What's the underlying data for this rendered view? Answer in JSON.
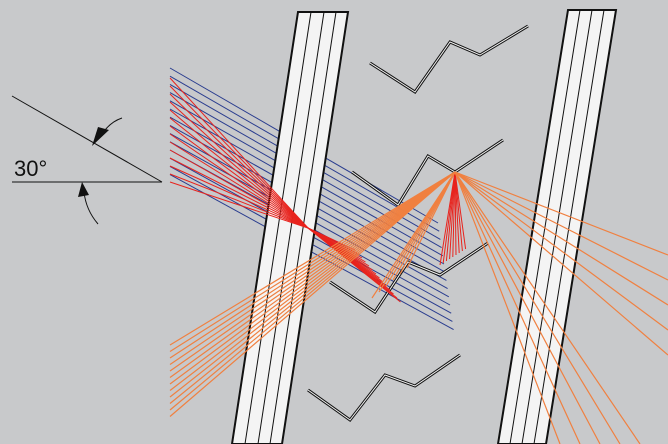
{
  "diagram": {
    "angle_label": "30°",
    "colors": {
      "background": "#c8c9cb",
      "incident_rays": "#2a3d8f",
      "converging_rays": "#e8231d",
      "reflected_rays": "#f08040",
      "plate_fill": "#f4f4f4",
      "outline": "#111111"
    }
  }
}
